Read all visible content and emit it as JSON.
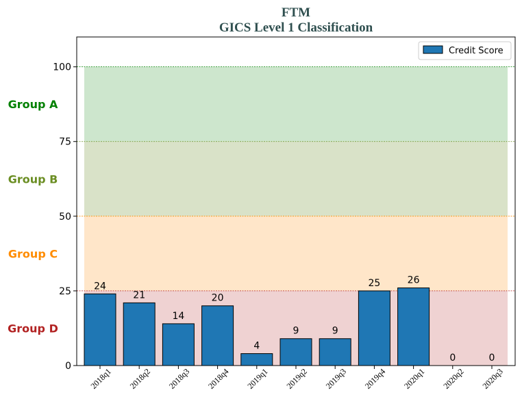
{
  "chart_data": {
    "type": "bar",
    "title": "FTM",
    "subtitle": "GICS Level 1 Classification",
    "xlabel": "",
    "ylabel": "",
    "ylim": [
      0,
      110
    ],
    "yticks": [
      0,
      25,
      50,
      75,
      100
    ],
    "categories": [
      "2018q1",
      "2018q2",
      "2018q3",
      "2018q4",
      "2019q1",
      "2019q2",
      "2019q3",
      "2019q4",
      "2020q1",
      "2020q2",
      "2020q3"
    ],
    "series": [
      {
        "name": "Credit Score",
        "values": [
          24,
          21,
          14,
          20,
          4,
          9,
          9,
          25,
          26,
          0,
          0
        ],
        "color": "#1f77b4"
      }
    ],
    "legend": {
      "placement": "top-right"
    },
    "bands": [
      {
        "label": "Group A",
        "from": 75,
        "to": 100,
        "fill": "#cde6cd",
        "label_color": "#008000",
        "line_color": "#008000"
      },
      {
        "label": "Group B",
        "from": 50,
        "to": 75,
        "fill": "#d9e2c8",
        "label_color": "#6b8e23",
        "line_color": "#6b8e23"
      },
      {
        "label": "Group C",
        "from": 25,
        "to": 50,
        "fill": "#ffe6c9",
        "label_color": "#ff8c00",
        "line_color": "#ff8c00"
      },
      {
        "label": "Group D",
        "from": 0,
        "to": 25,
        "fill": "#efd2d2",
        "label_color": "#b22222",
        "line_color": "#b22222"
      }
    ],
    "colors": {
      "title": "#2f4f4f",
      "bar_edge": "#000000"
    }
  }
}
